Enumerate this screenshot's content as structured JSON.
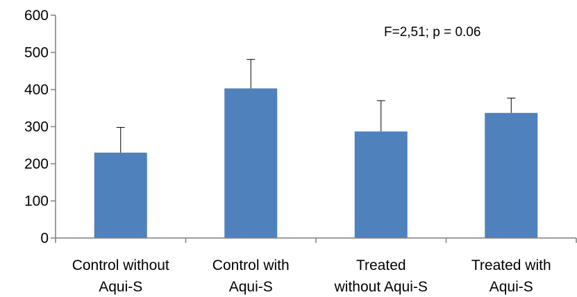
{
  "chart_data": {
    "type": "bar",
    "categories": [
      [
        "Control without",
        "Aqui-S"
      ],
      [
        "Control with",
        "Aqui-S"
      ],
      [
        "Treated",
        "without Aqui-S"
      ],
      [
        "Treated with",
        "Aqui-S"
      ]
    ],
    "values": [
      230,
      403,
      287,
      337
    ],
    "error_plus": [
      68,
      78,
      83,
      40
    ],
    "ylim": [
      0,
      600
    ],
    "yticks": [
      "0",
      "100",
      "200",
      "300",
      "400",
      "500",
      "600"
    ],
    "annotation": "F=2,51; p = 0.06",
    "grid": false,
    "bar_color": "#4F81BD",
    "axis_color": "#7f7f7f"
  }
}
